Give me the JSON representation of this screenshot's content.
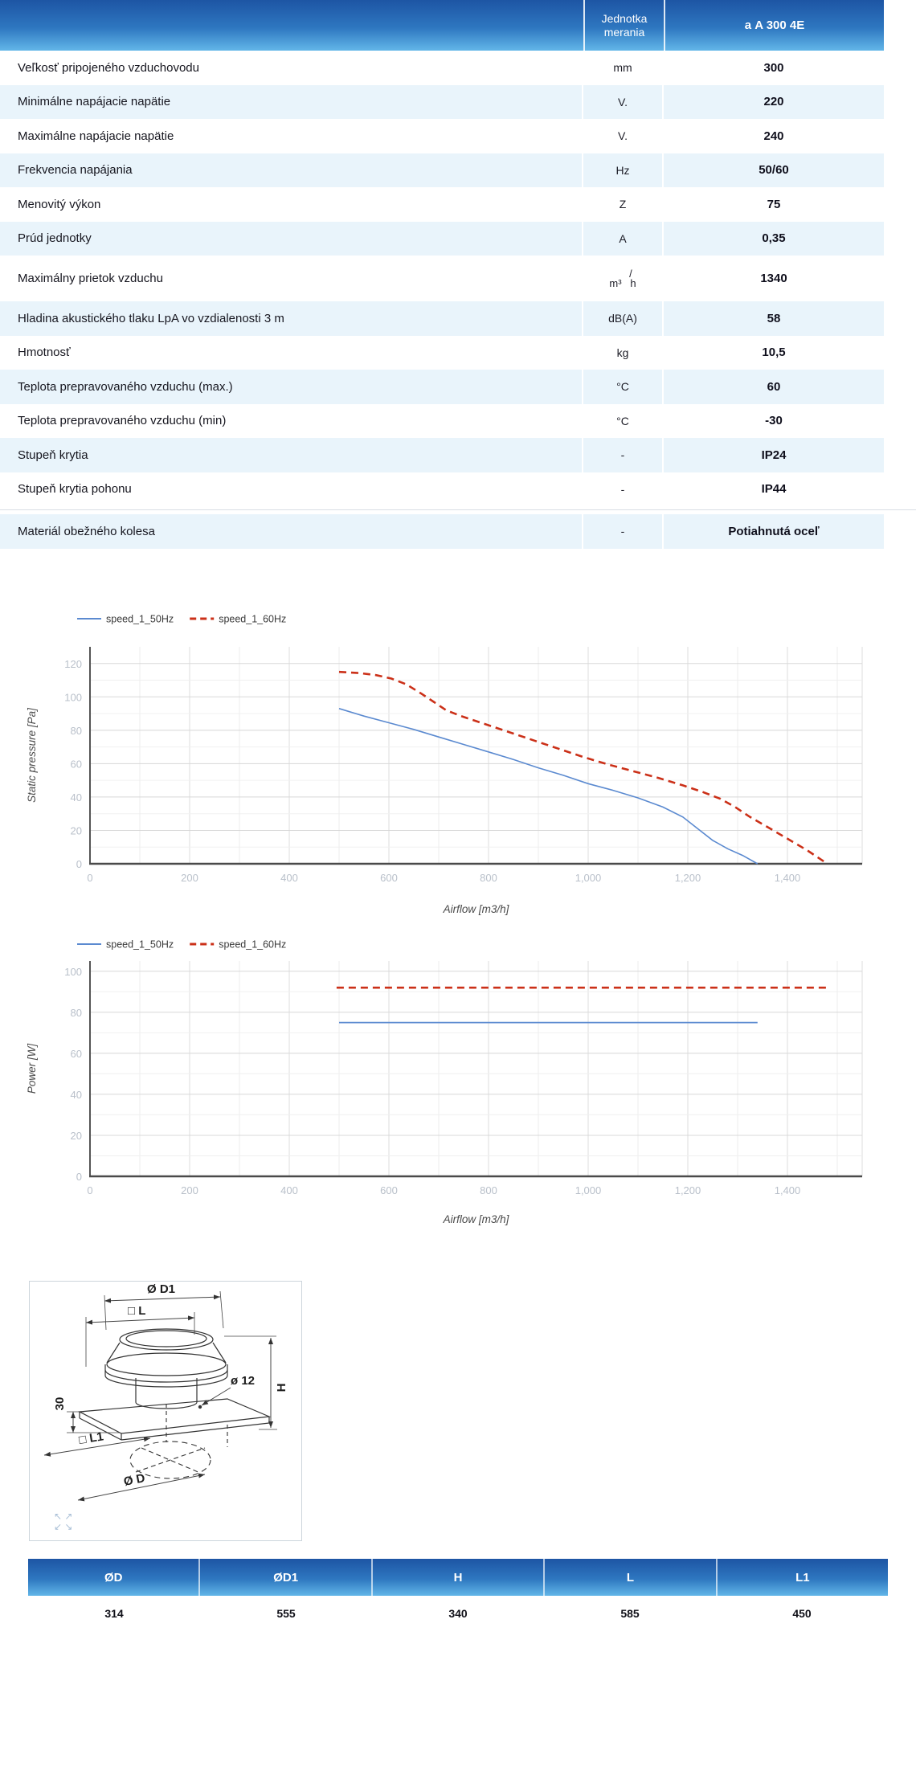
{
  "spec_table": {
    "header": {
      "unit_label": "Jednotka merania",
      "product_label": "а A 300 4E"
    },
    "rows": [
      {
        "label": "Veľkosť pripojeného vzduchovodu",
        "unit": "mm",
        "value": "300",
        "shade": false
      },
      {
        "label": "Minimálne napájacie napätie",
        "unit": "V.",
        "value": "220",
        "shade": true
      },
      {
        "label": "Maximálne napájacie napätie",
        "unit": "V.",
        "value": "240",
        "shade": false
      },
      {
        "label": "Frekvencia napájania",
        "unit": "Hz",
        "value": "50/60",
        "shade": true
      },
      {
        "label": "Menovitý výkon",
        "unit": "Z",
        "value": "75",
        "shade": false
      },
      {
        "label": "Prúd jednotky",
        "unit": "A",
        "value": "0,35",
        "shade": true
      },
      {
        "label": "Maximálny prietok vzduchu",
        "unit": "m³/h",
        "unit_stacked": true,
        "value": "1340",
        "shade": false,
        "tall": true
      },
      {
        "label": "Hladina akustického tlaku LpA vo vzdialenosti 3 m",
        "unit": "dB(A)",
        "value": "58",
        "shade": true
      },
      {
        "label": "Hmotnosť",
        "unit": "kg",
        "value": "10,5",
        "shade": false
      },
      {
        "label": "Teplota prepravovaného vzduchu (max.)",
        "unit": "°C",
        "value": "60",
        "shade": true
      },
      {
        "label": "Teplota prepravovaného vzduchu (min)",
        "unit": "°C",
        "value": "-30",
        "shade": false
      },
      {
        "label": "Stupeň krytia",
        "unit": "-",
        "value": "IP24",
        "shade": true
      },
      {
        "label": "Stupeň krytia pohonu",
        "unit": "-",
        "value": "IP44",
        "shade": false
      },
      {
        "label": "Materiál obežného kolesa",
        "unit": "-",
        "value": "Potiahnutá oceľ",
        "shade": true,
        "gap_before": true
      }
    ]
  },
  "chart_data": [
    {
      "name": "pressure-chart",
      "type": "line",
      "xlabel": "Airflow [m3/h]",
      "ylabel": "Static pressure [Pa]",
      "xlim": [
        0,
        1550
      ],
      "ylim": [
        0,
        130
      ],
      "x_major": 200,
      "x_minor": 100,
      "x_tick_max": 1400,
      "y_major": 20,
      "y_minor": 10,
      "y_tick_max": 120,
      "grid": true,
      "legend_position": "top-left",
      "series": [
        {
          "name": "speed_1_50Hz",
          "color": "#5b8ad0",
          "dash": null,
          "width": 1.6,
          "points": [
            [
              500,
              93
            ],
            [
              550,
              88.5
            ],
            [
              600,
              84.5
            ],
            [
              650,
              80.5
            ],
            [
              700,
              76
            ],
            [
              750,
              71.5
            ],
            [
              800,
              67
            ],
            [
              850,
              62.5
            ],
            [
              900,
              57.5
            ],
            [
              950,
              53
            ],
            [
              1000,
              48
            ],
            [
              1050,
              44
            ],
            [
              1100,
              39.5
            ],
            [
              1150,
              34
            ],
            [
              1190,
              28
            ],
            [
              1220,
              21
            ],
            [
              1250,
              14
            ],
            [
              1280,
              9
            ],
            [
              1310,
              5
            ],
            [
              1340,
              0
            ]
          ]
        },
        {
          "name": "speed_1_60Hz",
          "color": "#cb3018",
          "dash": "9 6",
          "width": 2.6,
          "points": [
            [
              500,
              115
            ],
            [
              540,
              114.3
            ],
            [
              575,
              113
            ],
            [
              605,
              111
            ],
            [
              635,
              107.5
            ],
            [
              665,
              102
            ],
            [
              690,
              97
            ],
            [
              715,
              92
            ],
            [
              745,
              88.5
            ],
            [
              790,
              84
            ],
            [
              840,
              79
            ],
            [
              890,
              74
            ],
            [
              940,
              69
            ],
            [
              990,
              64
            ],
            [
              1040,
              59.5
            ],
            [
              1090,
              55.5
            ],
            [
              1140,
              51.5
            ],
            [
              1190,
              47
            ],
            [
              1230,
              43
            ],
            [
              1265,
              39
            ],
            [
              1295,
              34
            ],
            [
              1325,
              28
            ],
            [
              1360,
              22
            ],
            [
              1400,
              15
            ],
            [
              1440,
              8
            ],
            [
              1470,
              2
            ],
            [
              1480,
              0
            ]
          ]
        }
      ]
    },
    {
      "name": "power-chart",
      "type": "line",
      "xlabel": "Airflow [m3/h]",
      "ylabel": "Power [W]",
      "xlim": [
        0,
        1550
      ],
      "ylim": [
        0,
        105
      ],
      "x_major": 200,
      "x_minor": 100,
      "x_tick_max": 1400,
      "y_major": 20,
      "y_minor": 10,
      "y_tick_max": 100,
      "grid": true,
      "legend_position": "top-left",
      "series": [
        {
          "name": "speed_1_50Hz",
          "color": "#5b8ad0",
          "dash": null,
          "width": 1.8,
          "points": [
            [
              500,
              75
            ],
            [
              1340,
              75
            ]
          ]
        },
        {
          "name": "speed_1_60Hz",
          "color": "#cb3018",
          "dash": "9 6",
          "width": 2.6,
          "points": [
            [
              495,
              92
            ],
            [
              1480,
              92
            ]
          ]
        }
      ]
    }
  ],
  "diagram": {
    "labels": {
      "d1": "Ø D1",
      "l": "□ L",
      "o12": "ø 12",
      "h": "H",
      "thirty": "30",
      "l1": "□ L1",
      "d": "Ø D"
    }
  },
  "dim_table": {
    "headers": [
      "ØD",
      "ØD1",
      "H",
      "L",
      "L1"
    ],
    "values": [
      "314",
      "555",
      "340",
      "585",
      "450"
    ]
  },
  "colors": {
    "header_gradient_top": "#1d55a4",
    "header_gradient_bottom": "#62b6e8",
    "row_shade": "#e9f4fb",
    "series_blue": "#5b8ad0",
    "series_red": "#cb3018",
    "grid_minor": "#ececec",
    "grid_major": "#d8d8d8",
    "tick_label": "#b9c0ca"
  }
}
